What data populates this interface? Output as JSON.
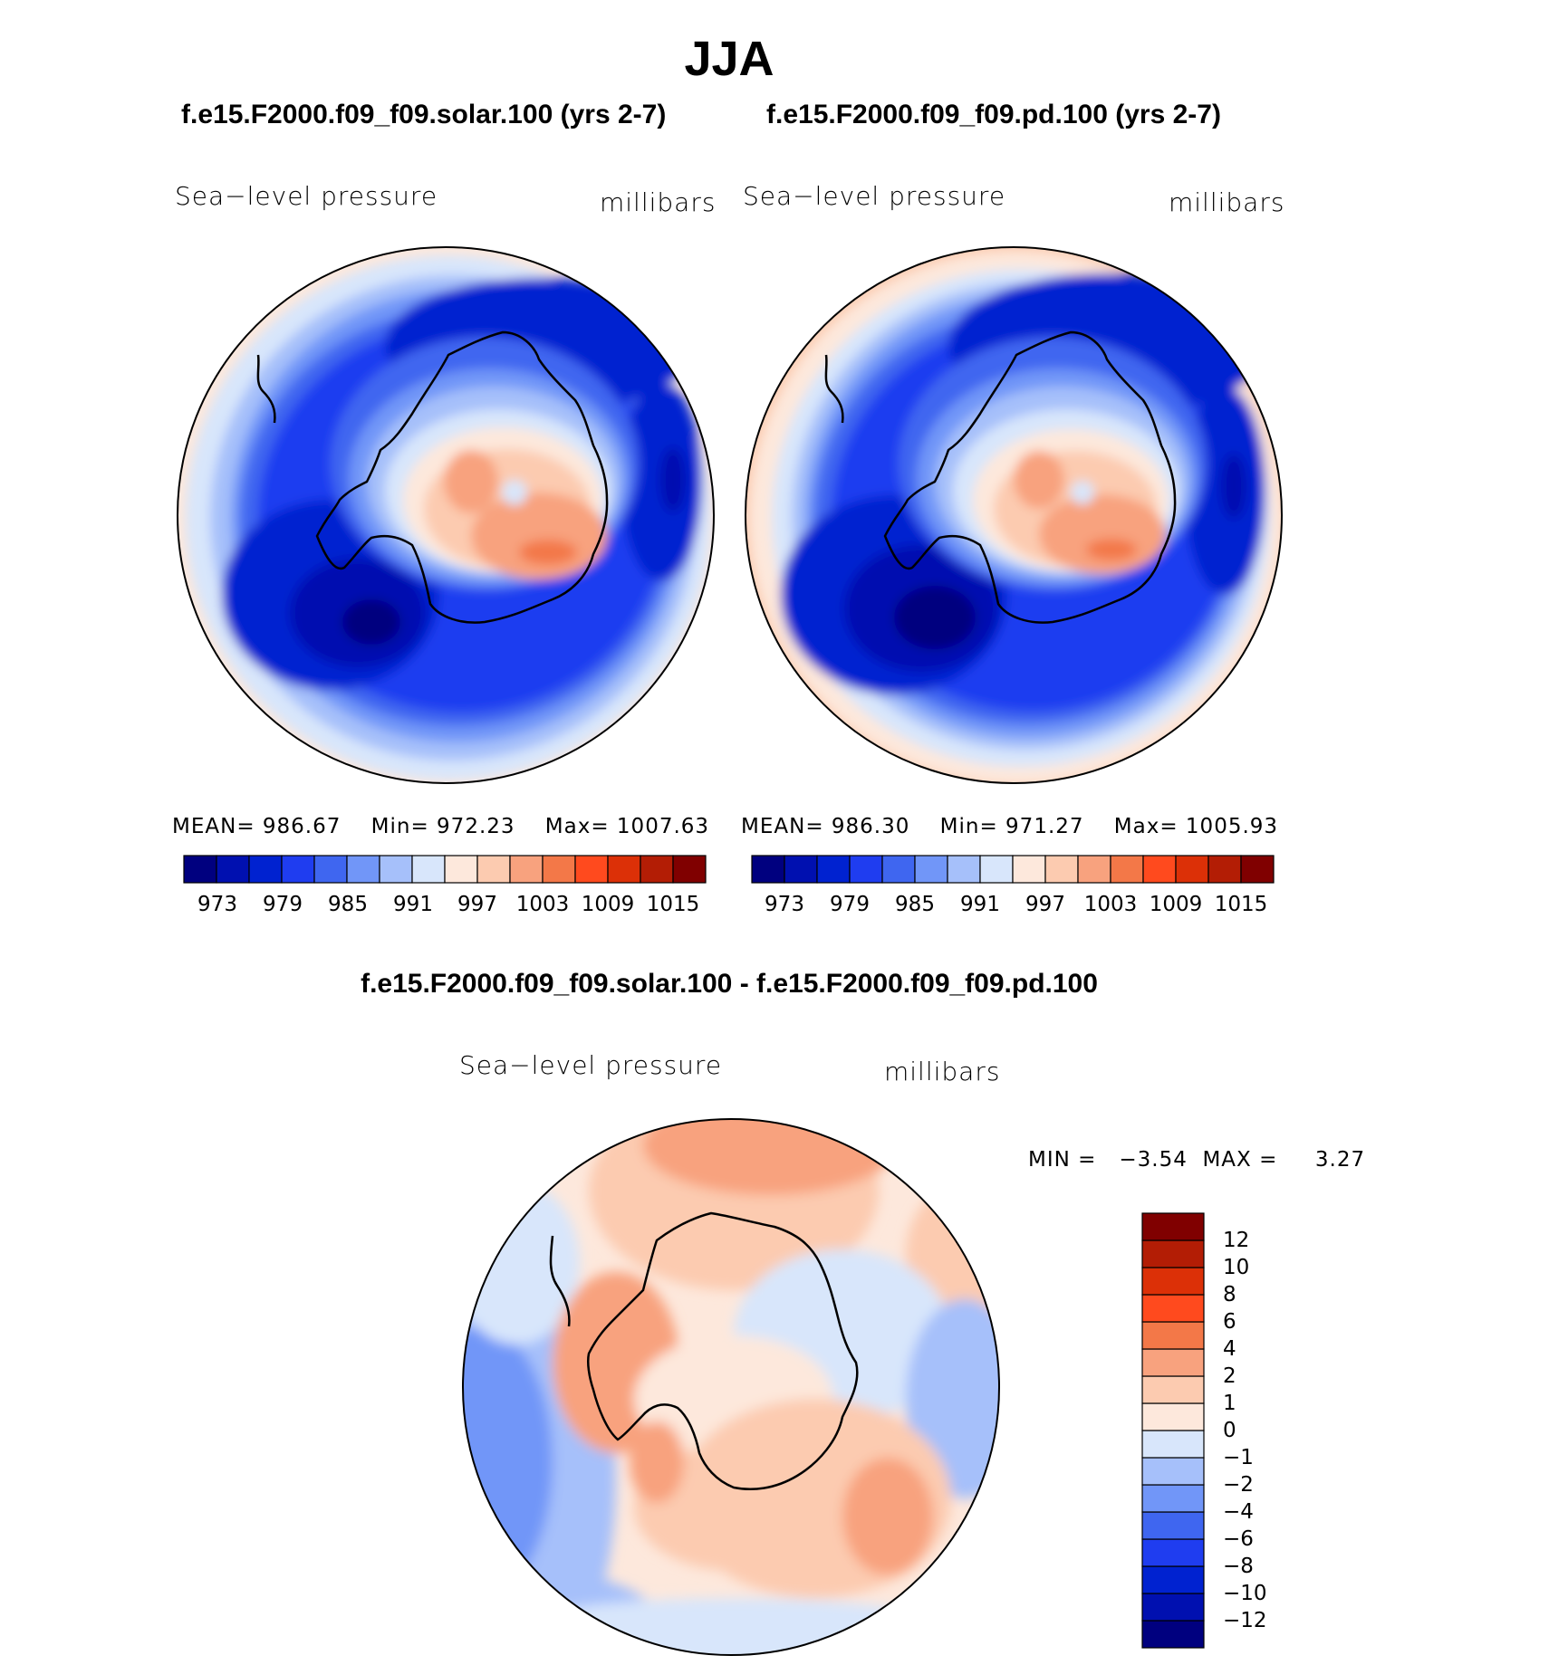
{
  "figure": {
    "title": "JJA",
    "colors": {
      "abs": [
        "#00007f",
        "#0010b0",
        "#0022d0",
        "#1f3df0",
        "#3f66f0",
        "#7196f8",
        "#a6c0fa",
        "#d8e6fb",
        "#fde8dc",
        "#fccbb0",
        "#f8a27e",
        "#f37848",
        "#ff4a1e",
        "#dc3007",
        "#b31d05",
        "#800000"
      ],
      "diff": [
        "#00007f",
        "#0010b0",
        "#0022d0",
        "#1f3df0",
        "#3f66f0",
        "#7196f8",
        "#a6c0fa",
        "#d8e6fb",
        "#fde8dc",
        "#fccbb0",
        "#f8a27e",
        "#f37848",
        "#ff4a1e",
        "#dc3007",
        "#b31d05",
        "#800000"
      ]
    }
  },
  "panels": [
    {
      "case_title": "f.e15.F2000.f09_f09.solar.100 (yrs 2-7)",
      "variable": "Sea−level pressure",
      "units": "millibars",
      "stats": {
        "mean_label": "MEAN=",
        "mean": "986.67",
        "min_label": "Min=",
        "min": "972.23",
        "max_label": "Max=",
        "max": "1007.63"
      },
      "colorbar_ticks": [
        "973",
        "979",
        "985",
        "991",
        "997",
        "1003",
        "1009",
        "1015"
      ]
    },
    {
      "case_title": "f.e15.F2000.f09_f09.pd.100 (yrs 2-7)",
      "variable": "Sea−level pressure",
      "units": "millibars",
      "stats": {
        "mean_label": "MEAN=",
        "mean": "986.30",
        "min_label": "Min=",
        "min": "971.27",
        "max_label": "Max=",
        "max": "1005.93"
      },
      "colorbar_ticks": [
        "973",
        "979",
        "985",
        "991",
        "997",
        "1003",
        "1009",
        "1015"
      ]
    }
  ],
  "difference": {
    "title": "f.e15.F2000.f09_f09.solar.100 - f.e15.F2000.f09_f09.pd.100",
    "variable": "Sea−level pressure",
    "units": "millibars",
    "stats_text": "MIN =   −3.54  MAX =     3.27",
    "colorbar_ticks": [
      "12",
      "10",
      "8",
      "6",
      "4",
      "2",
      "1",
      "0",
      "−1",
      "−2",
      "−4",
      "−6",
      "−8",
      "−10",
      "−12"
    ]
  }
}
